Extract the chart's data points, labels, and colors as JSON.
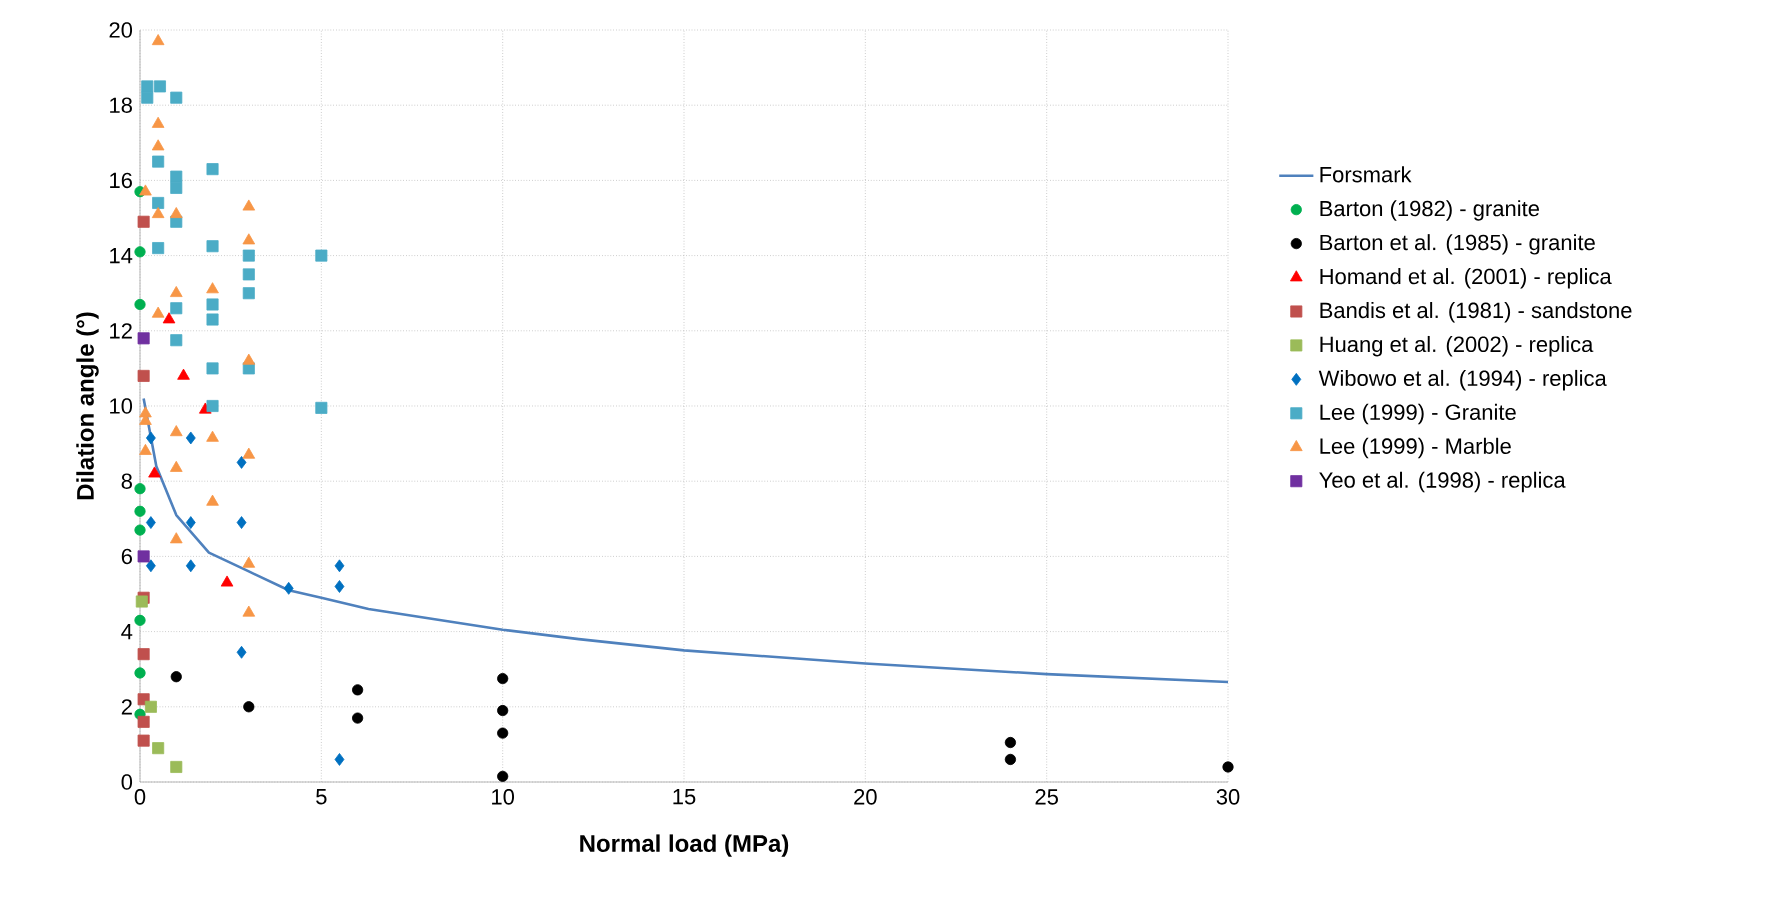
{
  "chart_data": {
    "type": "scatter",
    "xlabel": "Normal load (MPa)",
    "ylabel": "Dilation angle (°)",
    "xlim": [
      0,
      30
    ],
    "ylim": [
      0,
      20
    ],
    "xticks": [
      0,
      5,
      10,
      15,
      20,
      25,
      30
    ],
    "yticks": [
      0,
      2,
      4,
      6,
      8,
      10,
      12,
      14,
      16,
      18,
      20
    ],
    "grid": true,
    "legend": "right",
    "series": [
      {
        "name": "Forsmark",
        "type": "line",
        "marker": "none",
        "line_style": "solid",
        "color": "#4f81bd",
        "x": [
          0.1,
          0.45,
          1.0,
          1.9,
          3.0,
          4.1,
          5.0,
          6.3,
          10,
          12.1,
          15,
          20,
          25,
          30
        ],
        "values": [
          10.2,
          8.4,
          7.1,
          6.1,
          5.6,
          5.1,
          4.9,
          4.6,
          4.05,
          3.8,
          3.5,
          3.15,
          2.87,
          2.66
        ]
      },
      {
        "name": "Barton (1982) - granite",
        "marker": "circle",
        "color": "#00b050",
        "x": [
          0,
          0,
          0,
          0,
          0,
          0,
          0,
          0,
          0
        ],
        "values": [
          15.7,
          14.1,
          12.7,
          7.8,
          7.2,
          6.7,
          4.3,
          2.9,
          1.8
        ]
      },
      {
        "name": "Barton et al. (1985) - granite",
        "marker": "circle",
        "color": "#000000",
        "x": [
          1,
          3,
          6,
          6,
          10,
          10,
          10,
          10,
          24,
          24,
          30
        ],
        "values": [
          2.8,
          2.0,
          2.45,
          1.7,
          2.75,
          1.9,
          1.3,
          0.15,
          1.05,
          0.6,
          0.4
        ]
      },
      {
        "name": "Homand et al. (2001) - replica",
        "marker": "triangle",
        "color": "#ff0000",
        "x": [
          0.8,
          1.2,
          1.8,
          0.4,
          2.4
        ],
        "values": [
          12.3,
          10.8,
          9.9,
          8.2,
          5.3
        ]
      },
      {
        "name": "Bandis et al. (1981) - sandstone",
        "marker": "square",
        "color": "#c0504d",
        "x": [
          0.1,
          0.1,
          0.1,
          0.1,
          0.1,
          0.1,
          0.1
        ],
        "values": [
          14.9,
          10.8,
          4.9,
          3.4,
          2.2,
          1.6,
          1.1
        ]
      },
      {
        "name": "Huang et al. (2002) - replica",
        "marker": "square",
        "color": "#9bbb59",
        "x": [
          0.05,
          0.3,
          0.5,
          1.0
        ],
        "values": [
          4.8,
          2.0,
          0.9,
          0.4
        ]
      },
      {
        "name": "Wibowo et al. (1994) - replica",
        "marker": "diamond",
        "color": "#0070c0",
        "x": [
          0.3,
          1.4,
          2.8,
          0.3,
          1.4,
          2.8,
          0.3,
          1.4,
          4.1,
          5.5,
          5.5,
          2.8,
          5.5
        ],
        "values": [
          9.15,
          9.15,
          8.5,
          6.9,
          6.9,
          6.9,
          5.75,
          5.75,
          5.15,
          5.75,
          5.2,
          3.45,
          0.6
        ]
      },
      {
        "name": "Lee (1999) - Granite",
        "marker": "square",
        "color": "#4bacc6",
        "x": [
          0.2,
          0.2,
          0.55,
          1.0,
          0.5,
          2.0,
          1.0,
          1.0,
          0.5,
          1.0,
          0.5,
          2.0,
          3.0,
          3.0,
          3.0,
          5.0,
          1.0,
          2.0,
          2.0,
          1.0,
          2.0,
          3.0,
          2.0,
          5.0
        ],
        "values": [
          18.5,
          18.2,
          18.5,
          18.2,
          16.5,
          16.3,
          16.1,
          15.8,
          15.4,
          14.9,
          14.2,
          14.25,
          14.0,
          13.5,
          13.0,
          14.0,
          12.6,
          12.7,
          12.3,
          11.75,
          11.0,
          11.0,
          10.0,
          9.95
        ]
      },
      {
        "name": "Lee (1999) - Marble",
        "marker": "triangle",
        "color": "#f79646",
        "x": [
          0.5,
          0.5,
          0.5,
          0.15,
          0.5,
          1.0,
          3.0,
          3.0,
          1.0,
          2.0,
          0.5,
          3.0,
          0.15,
          0.15,
          1.0,
          2.0,
          0.15,
          1.0,
          3.0,
          2.0,
          1.0,
          3.0,
          3.0
        ],
        "values": [
          19.7,
          17.5,
          16.9,
          15.7,
          15.1,
          15.1,
          15.3,
          14.4,
          13.0,
          13.1,
          12.45,
          11.2,
          9.8,
          9.6,
          9.3,
          9.15,
          8.8,
          8.35,
          8.7,
          7.45,
          6.45,
          5.8,
          4.5
        ]
      },
      {
        "name": "Yeo et al. (1998) - replica",
        "marker": "square",
        "color": "#7030a0",
        "x": [
          0.1,
          0.1
        ],
        "values": [
          11.8,
          6.0
        ]
      }
    ]
  }
}
